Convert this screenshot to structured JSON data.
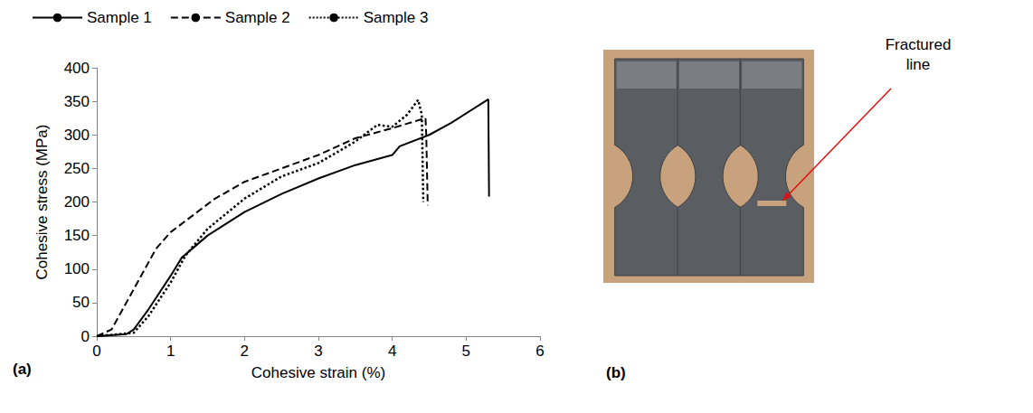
{
  "chart_data": {
    "type": "line",
    "panel_label": "(a)",
    "x_label": "Cohesive strain (%)",
    "y_label": "Cohesive stress (MPa)",
    "xlim": [
      0,
      6
    ],
    "xticks": [
      0,
      1,
      2,
      3,
      4,
      5,
      6
    ],
    "ylim": [
      0,
      400
    ],
    "yticks": [
      0,
      50,
      100,
      150,
      200,
      250,
      300,
      350,
      400
    ],
    "grid": false,
    "legend": "top",
    "series": [
      {
        "name": "Sample 1",
        "color": "#000000",
        "line_style": "solid",
        "x": [
          0,
          0.4,
          0.5,
          0.7,
          1.0,
          1.15,
          1.5,
          2,
          2.5,
          3,
          3.5,
          4,
          4.1,
          4.5,
          4.8,
          5.3,
          5.31
        ],
        "values": [
          0,
          3,
          10,
          40,
          90,
          117,
          150,
          185,
          212,
          235,
          255,
          270,
          283,
          300,
          318,
          353,
          208
        ]
      },
      {
        "name": "Sample 2",
        "color": "#000000",
        "line_style": "dashed",
        "x": [
          0,
          0.2,
          0.5,
          0.8,
          1.0,
          1.3,
          1.6,
          2,
          2.5,
          3,
          3.5,
          4,
          4.3,
          4.45,
          4.46,
          4.48
        ],
        "values": [
          0,
          10,
          70,
          130,
          155,
          180,
          205,
          230,
          250,
          270,
          295,
          310,
          320,
          325,
          300,
          195
        ]
      },
      {
        "name": "Sample 3",
        "color": "#000000",
        "line_style": "dotted",
        "x": [
          0,
          0.5,
          0.7,
          1.0,
          1.2,
          1.5,
          2,
          2.5,
          3,
          3.5,
          3.8,
          4,
          4.2,
          4.35,
          4.4,
          4.42
        ],
        "values": [
          0,
          5,
          30,
          80,
          120,
          160,
          205,
          238,
          258,
          290,
          315,
          312,
          330,
          352,
          330,
          200
        ]
      }
    ]
  },
  "photo": {
    "label": "(b)",
    "annotation": "Fractured line",
    "specimens": 3
  }
}
